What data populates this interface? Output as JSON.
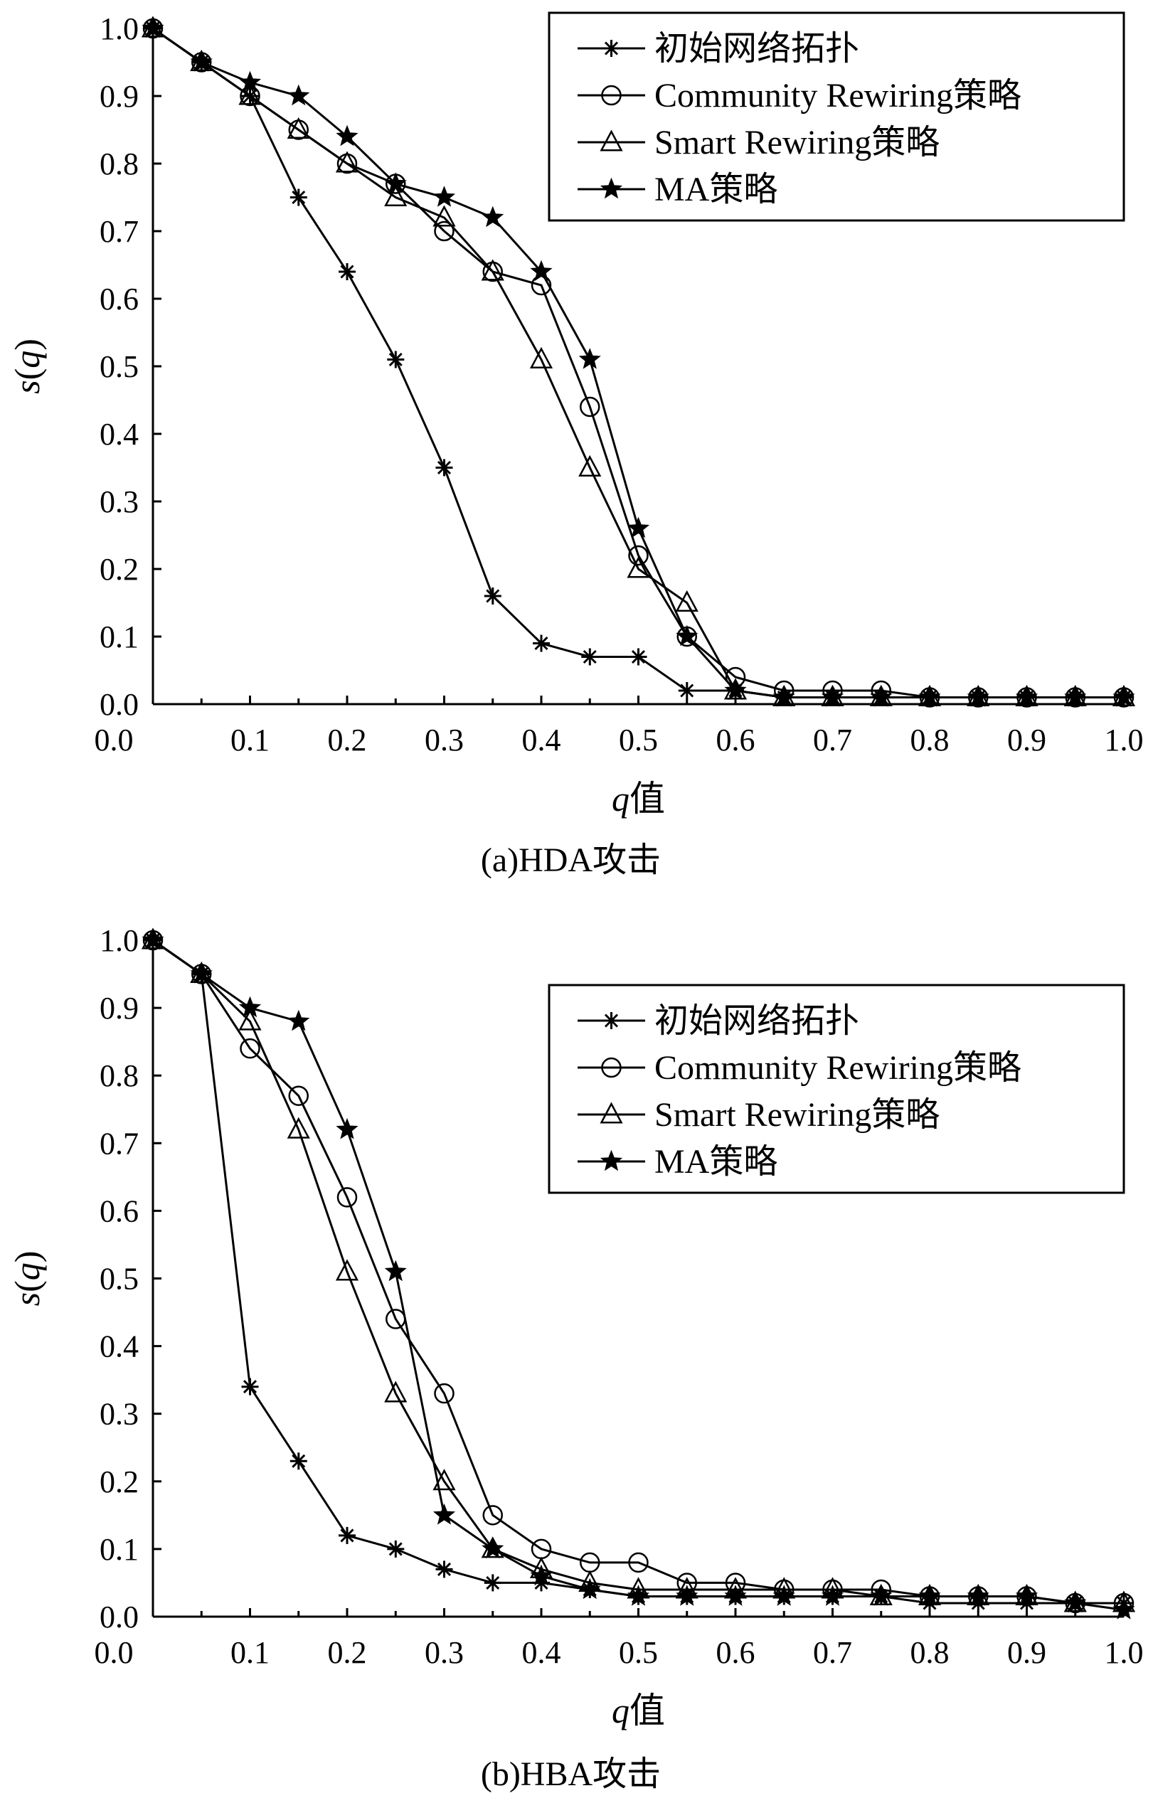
{
  "figure": {
    "panels": [
      {
        "caption": "(a)HDA攻击",
        "xlabel": "q值",
        "ylabel": "s(q)"
      },
      {
        "caption": "(b)HBA攻击",
        "xlabel": "q值",
        "ylabel": "s(q)"
      }
    ]
  },
  "chart_data": [
    {
      "type": "line",
      "title": "(a)HDA攻击",
      "xlabel": "q值",
      "ylabel": "s(q)",
      "xlim": [
        0,
        1.0
      ],
      "ylim": [
        0,
        1.0
      ],
      "x_ticks": [
        "0.0",
        "0.1",
        "0.2",
        "0.3",
        "0.4",
        "0.5",
        "0.6",
        "0.7",
        "0.8",
        "0.9",
        "1.0"
      ],
      "y_ticks": [
        "0.0",
        "0.1",
        "0.2",
        "0.3",
        "0.4",
        "0.5",
        "0.6",
        "0.7",
        "0.8",
        "0.9",
        "1.0"
      ],
      "legend_position": "top-right",
      "grid": false,
      "x": [
        0.0,
        0.05,
        0.1,
        0.15,
        0.2,
        0.25,
        0.3,
        0.35,
        0.4,
        0.45,
        0.5,
        0.55,
        0.6,
        0.65,
        0.7,
        0.75,
        0.8,
        0.85,
        0.9,
        0.95,
        1.0
      ],
      "series": [
        {
          "name": "初始网络拓扑",
          "marker": "asterisk",
          "values": [
            1.0,
            0.95,
            0.9,
            0.75,
            0.64,
            0.51,
            0.35,
            0.16,
            0.09,
            0.07,
            0.07,
            0.02,
            0.02,
            0.01,
            0.01,
            0.01,
            0.01,
            0.01,
            0.01,
            0.01,
            0.01
          ]
        },
        {
          "name": "Community Rewiring策略",
          "marker": "circle",
          "values": [
            1.0,
            0.95,
            0.9,
            0.85,
            0.8,
            0.77,
            0.7,
            0.64,
            0.62,
            0.44,
            0.22,
            0.1,
            0.04,
            0.02,
            0.02,
            0.02,
            0.01,
            0.01,
            0.01,
            0.01,
            0.01
          ]
        },
        {
          "name": "Smart Rewiring策略",
          "marker": "triangle",
          "values": [
            1.0,
            0.95,
            0.9,
            0.85,
            0.8,
            0.75,
            0.72,
            0.64,
            0.51,
            0.35,
            0.2,
            0.15,
            0.02,
            0.01,
            0.01,
            0.01,
            0.01,
            0.01,
            0.01,
            0.01,
            0.01
          ]
        },
        {
          "name": "MA策略",
          "marker": "star",
          "values": [
            1.0,
            0.95,
            0.92,
            0.9,
            0.84,
            0.77,
            0.75,
            0.72,
            0.64,
            0.51,
            0.26,
            0.1,
            0.02,
            0.01,
            0.01,
            0.01,
            0.01,
            0.01,
            0.01,
            0.01,
            0.01
          ]
        }
      ]
    },
    {
      "type": "line",
      "title": "(b)HBA攻击",
      "xlabel": "q值",
      "ylabel": "s(q)",
      "xlim": [
        0,
        1.0
      ],
      "ylim": [
        0,
        1.0
      ],
      "x_ticks": [
        "0.0",
        "0.1",
        "0.2",
        "0.3",
        "0.4",
        "0.5",
        "0.6",
        "0.7",
        "0.8",
        "0.9",
        "1.0"
      ],
      "y_ticks": [
        "0.0",
        "0.1",
        "0.2",
        "0.3",
        "0.4",
        "0.5",
        "0.6",
        "0.7",
        "0.8",
        "0.9",
        "1.0"
      ],
      "legend_position": "top-right",
      "grid": false,
      "x": [
        0.0,
        0.05,
        0.1,
        0.15,
        0.2,
        0.25,
        0.3,
        0.35,
        0.4,
        0.45,
        0.5,
        0.55,
        0.6,
        0.65,
        0.7,
        0.75,
        0.8,
        0.85,
        0.9,
        0.95,
        1.0
      ],
      "series": [
        {
          "name": "初始网络拓扑",
          "marker": "asterisk",
          "values": [
            1.0,
            0.95,
            0.34,
            0.23,
            0.12,
            0.1,
            0.07,
            0.05,
            0.05,
            0.04,
            0.03,
            0.03,
            0.03,
            0.03,
            0.03,
            0.03,
            0.02,
            0.02,
            0.02,
            0.02,
            0.02
          ]
        },
        {
          "name": "Community Rewiring策略",
          "marker": "circle",
          "values": [
            1.0,
            0.95,
            0.84,
            0.77,
            0.62,
            0.44,
            0.33,
            0.15,
            0.1,
            0.08,
            0.08,
            0.05,
            0.05,
            0.04,
            0.04,
            0.04,
            0.03,
            0.03,
            0.03,
            0.02,
            0.02
          ]
        },
        {
          "name": "Smart Rewiring策略",
          "marker": "triangle",
          "values": [
            1.0,
            0.95,
            0.88,
            0.72,
            0.51,
            0.33,
            0.2,
            0.1,
            0.07,
            0.05,
            0.04,
            0.04,
            0.04,
            0.04,
            0.04,
            0.03,
            0.03,
            0.03,
            0.03,
            0.02,
            0.02
          ]
        },
        {
          "name": "MA策略",
          "marker": "star",
          "values": [
            1.0,
            0.95,
            0.9,
            0.88,
            0.72,
            0.51,
            0.15,
            0.1,
            0.06,
            0.04,
            0.03,
            0.03,
            0.03,
            0.03,
            0.03,
            0.03,
            0.03,
            0.03,
            0.03,
            0.02,
            0.01
          ]
        }
      ]
    }
  ]
}
